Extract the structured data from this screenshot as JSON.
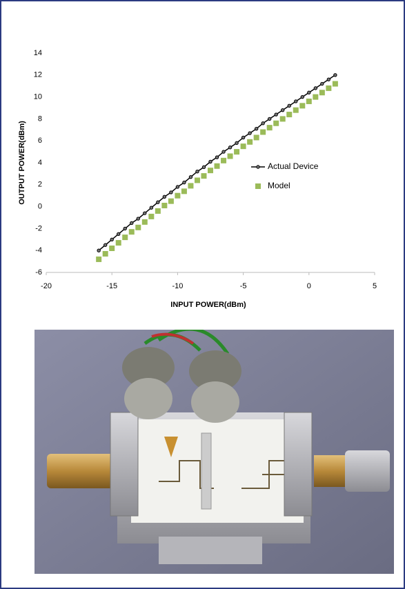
{
  "chart_data": {
    "type": "line",
    "x": [
      -16,
      -15.5,
      -15,
      -14.5,
      -14,
      -13.5,
      -13,
      -12.5,
      -12,
      -11.5,
      -11,
      -10.5,
      -10,
      -9.5,
      -9,
      -8.5,
      -8,
      -7.5,
      -7,
      -6.5,
      -6,
      -5.5,
      -5,
      -4.5,
      -4,
      -3.5,
      -3,
      -2.5,
      -2,
      -1.5,
      -1,
      -0.5,
      0,
      0.5,
      1,
      1.5,
      2
    ],
    "series": [
      {
        "name": "Actual Device",
        "color": "#000000",
        "style": "line-marker",
        "values": [
          -4,
          -3.5,
          -3,
          -2.5,
          -2,
          -1.5,
          -1.1,
          -0.6,
          -0.1,
          0.4,
          0.9,
          1.3,
          1.8,
          2.2,
          2.7,
          3.2,
          3.6,
          4.1,
          4.5,
          5,
          5.4,
          5.8,
          6.3,
          6.7,
          7.1,
          7.6,
          8,
          8.4,
          8.8,
          9.2,
          9.6,
          10,
          10.4,
          10.8,
          11.2,
          11.6,
          12
        ]
      },
      {
        "name": "Model",
        "color": "#9bbb59",
        "style": "marker",
        "values": [
          -4.8,
          -4.3,
          -3.8,
          -3.3,
          -2.8,
          -2.3,
          -1.9,
          -1.4,
          -0.9,
          -0.4,
          0.1,
          0.5,
          1,
          1.4,
          1.9,
          2.4,
          2.8,
          3.3,
          3.7,
          4.2,
          4.6,
          5,
          5.5,
          5.9,
          6.3,
          6.8,
          7.2,
          7.6,
          8,
          8.4,
          8.8,
          9.2,
          9.6,
          10,
          10.4,
          10.8,
          11.2
        ]
      }
    ],
    "xlabel": "INPUT POWER(dBm)",
    "ylabel": "OUTPUT POWER(dBm)",
    "xlim": [
      -20,
      5
    ],
    "xticks": [
      -20,
      -15,
      -10,
      -5,
      0,
      5
    ],
    "ylim": [
      -6,
      14
    ],
    "yticks": [
      -6,
      -4,
      -2,
      0,
      2,
      4,
      6,
      8,
      10,
      12,
      14
    ],
    "grid": false,
    "legend": "right"
  }
}
